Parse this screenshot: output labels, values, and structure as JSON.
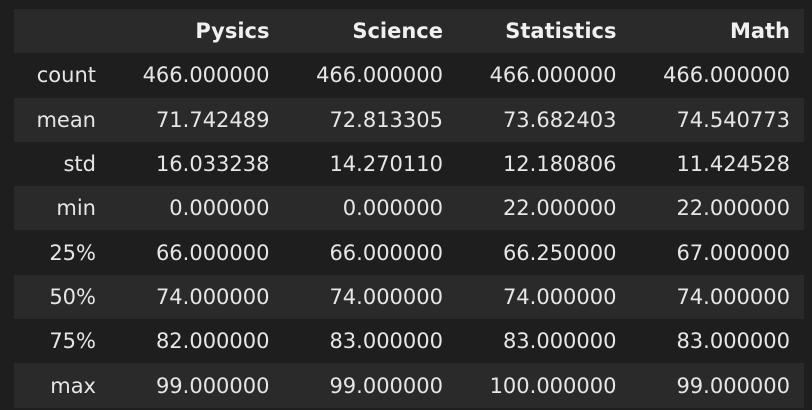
{
  "table": {
    "columns": [
      "Pysics",
      "Science",
      "Statistics",
      "Math"
    ],
    "rows": [
      {
        "index": "count",
        "values": [
          "466.000000",
          "466.000000",
          "466.000000",
          "466.000000"
        ]
      },
      {
        "index": "mean",
        "values": [
          "71.742489",
          "72.813305",
          "73.682403",
          "74.540773"
        ]
      },
      {
        "index": "std",
        "values": [
          "16.033238",
          "14.270110",
          "12.180806",
          "11.424528"
        ]
      },
      {
        "index": "min",
        "values": [
          "0.000000",
          "0.000000",
          "22.000000",
          "22.000000"
        ]
      },
      {
        "index": "25%",
        "values": [
          "66.000000",
          "66.000000",
          "66.250000",
          "67.000000"
        ]
      },
      {
        "index": "50%",
        "values": [
          "74.000000",
          "74.000000",
          "74.000000",
          "74.000000"
        ]
      },
      {
        "index": "75%",
        "values": [
          "82.000000",
          "83.000000",
          "83.000000",
          "83.000000"
        ]
      },
      {
        "index": "max",
        "values": [
          "99.000000",
          "99.000000",
          "100.000000",
          "99.000000"
        ]
      }
    ]
  },
  "colors": {
    "background": "#1e1e1e",
    "row_shade": "#2a2a2a",
    "text": "#e6e6e6"
  }
}
